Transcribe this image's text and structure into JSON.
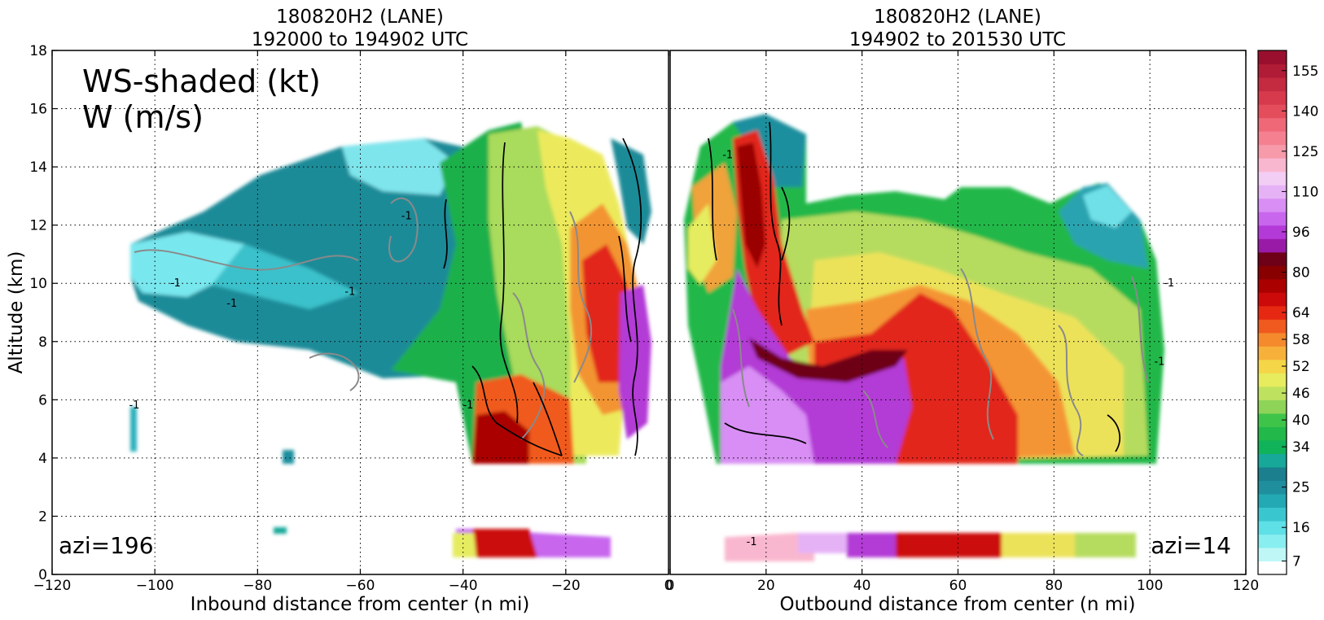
{
  "chart_data": [
    {
      "type": "heatmap",
      "panel": "left",
      "title": "180820H2 (LANE)",
      "subtitle": "192000 to 194902 UTC",
      "xlabel": "Inbound distance from center (n mi)",
      "ylabel": "Altitude (km)",
      "xlim": [
        -120,
        0
      ],
      "ylim": [
        0,
        18
      ],
      "xticks": [
        "−120",
        "−100",
        "−80",
        "−60",
        "−40",
        "−20",
        "0"
      ],
      "yticks": [
        "0",
        "2",
        "4",
        "6",
        "8",
        "10",
        "12",
        "14",
        "16",
        "18"
      ],
      "annotation_lines": [
        "WS-shaded (kt)",
        "W (m/s)"
      ],
      "azimuth_label": "azi=196",
      "contour_labels": [
        {
          "text": "-1",
          "x": -51,
          "y": 12.2
        },
        {
          "text": "-1",
          "x": -96,
          "y": 9.9
        },
        {
          "text": "-1",
          "x": -85,
          "y": 9.2
        },
        {
          "text": "-1",
          "x": -62,
          "y": 9.6
        },
        {
          "text": "-1",
          "x": -39,
          "y": 5.7
        },
        {
          "text": "-1",
          "x": -104,
          "y": 5.7
        }
      ],
      "grid": true
    },
    {
      "type": "heatmap",
      "panel": "right",
      "title": "180820H2 (LANE)",
      "subtitle": "194902 to 201530 UTC",
      "xlabel": "Outbound distance from center (n mi)",
      "xlim": [
        0,
        120
      ],
      "ylim": [
        0,
        18
      ],
      "xticks": [
        "0",
        "20",
        "40",
        "60",
        "80",
        "100",
        "120"
      ],
      "azimuth_label": "azi=14",
      "contour_labels": [
        {
          "text": "-1",
          "x": 12,
          "y": 14.3
        },
        {
          "text": "-1",
          "x": 17,
          "y": 1.0
        },
        {
          "text": "-1",
          "x": 104,
          "y": 9.9
        },
        {
          "text": "-1",
          "x": 102,
          "y": 7.2
        }
      ],
      "grid": true
    }
  ],
  "colorbar": {
    "levels": [
      7,
      16,
      25,
      34,
      40,
      46,
      52,
      58,
      64,
      80,
      96,
      110,
      125,
      140,
      155
    ],
    "tick_labels": [
      "7",
      "16",
      "25",
      "34",
      "40",
      "46",
      "52",
      "58",
      "64",
      "80",
      "96",
      "110",
      "125",
      "140",
      "155"
    ],
    "colors": [
      "#ffffff",
      "#bff7f7",
      "#88eef0",
      "#5fdfe6",
      "#3ac6cf",
      "#22a9b4",
      "#1f8f9e",
      "#1b7f8e",
      "#17a89a",
      "#10b25a",
      "#22b84a",
      "#3fc44a",
      "#8ed458",
      "#bfe160",
      "#e6ec5e",
      "#f4d648",
      "#f7b13a",
      "#f48a2c",
      "#f05a1e",
      "#e62812",
      "#cc0a0a",
      "#aa0000",
      "#880000",
      "#6e0018",
      "#9a1aa8",
      "#b43ad8",
      "#c866ee",
      "#d88ef4",
      "#e6b2f6",
      "#f2cdf4",
      "#f9b7cf",
      "#f79aaa",
      "#f48090",
      "#ee6878",
      "#e44e5c",
      "#d63a4c",
      "#c42a40",
      "#b01c36",
      "#9a0f2e"
    ]
  }
}
